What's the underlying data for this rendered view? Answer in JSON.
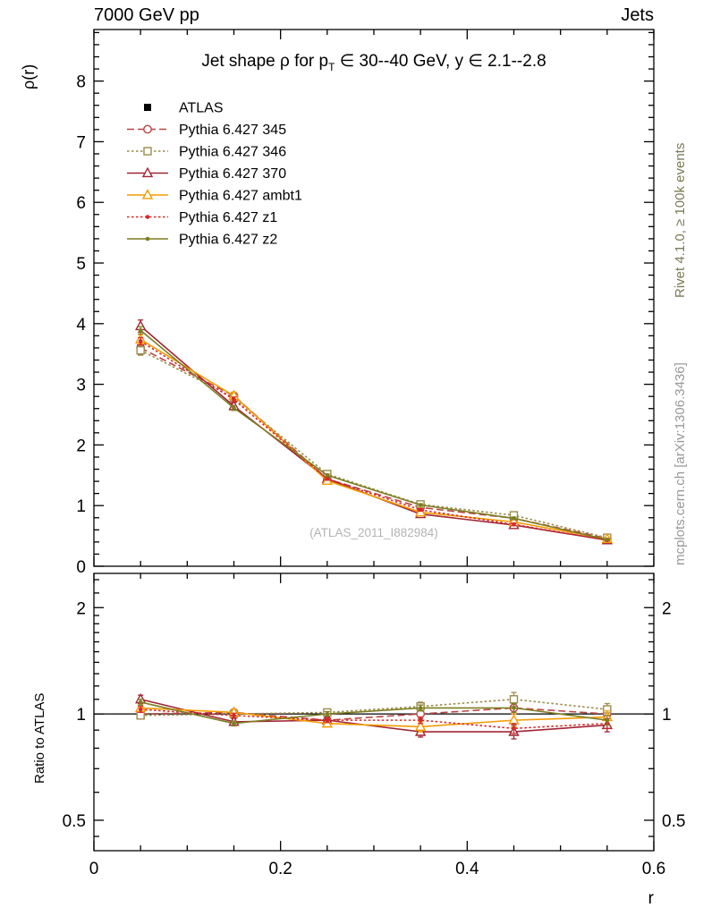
{
  "header": {
    "left": "7000 GeV pp",
    "right": "Jets"
  },
  "title": {
    "pre": "Jet shape ρ for p",
    "sub": "T",
    "post": " ∈ 30--40 GeV, y ∈ 2.1--2.8"
  },
  "side_notes": {
    "rivet": "Rivet 4.1.0, ≥ 100k events",
    "mcplots": "mcplots.cern.ch [arXiv:1306.3436]"
  },
  "watermark": "(ATLAS_2011_I882984)",
  "chart_data": {
    "type": "line",
    "x_label": "r",
    "x": [
      0.05,
      0.15,
      0.25,
      0.35,
      0.45,
      0.55
    ],
    "xlim": [
      0,
      0.6
    ],
    "x_major_ticks": [
      0,
      0.2,
      0.4,
      0.6
    ],
    "x_minor_step": 0.05,
    "main_panel": {
      "ylabel": "ρ(r)",
      "scale": "linear",
      "ylim": [
        0,
        8.85
      ],
      "major_ticks": [
        0,
        1,
        2,
        3,
        4,
        5,
        6,
        7,
        8
      ],
      "minor_step": 0.2
    },
    "ratio_panel": {
      "ylabel": "Ratio to ATLAS",
      "scale": "log",
      "ylim": [
        0.41,
        2.5
      ],
      "major_ticks": [
        0.5,
        1,
        2
      ],
      "minor_ticks": [
        0.45,
        0.6,
        0.7,
        0.8,
        0.9,
        1.1,
        1.2,
        1.3,
        1.4,
        1.5,
        1.6,
        1.7,
        1.8,
        1.9,
        2.2,
        2.4
      ]
    },
    "series": [
      {
        "name": "atlas",
        "label": "ATLAS",
        "color": "#000000",
        "line": "none",
        "marker": "square-filled",
        "values": [
          3.6,
          2.78,
          1.5,
          0.97,
          0.76,
          0.46
        ],
        "errs": [
          0.1,
          0.08,
          0.04,
          0.03,
          0.03,
          0.02
        ],
        "ratio": [
          1,
          1,
          1,
          1,
          1,
          1
        ],
        "ratio_errs": [
          0,
          0,
          0,
          0,
          0,
          0
        ]
      },
      {
        "name": "pythia-345",
        "label": "Pythia 6.427 345",
        "color": "#bb4444",
        "line": "dashed",
        "marker": "circle-open",
        "values": [
          3.6,
          2.81,
          1.44,
          0.97,
          0.79,
          0.46
        ],
        "errs": [
          0.08,
          0.06,
          0.03,
          0.03,
          0.03,
          0.02
        ],
        "ratio": [
          1.0,
          1.01,
          0.96,
          1.0,
          1.04,
          1.0
        ],
        "ratio_errs": [
          0.02,
          0.02,
          0.02,
          0.03,
          0.04,
          0.04
        ]
      },
      {
        "name": "pythia-346",
        "label": "Pythia 6.427 346",
        "color": "#9c8b4a",
        "line": "dotted",
        "marker": "square-open",
        "values": [
          3.56,
          2.78,
          1.52,
          1.02,
          0.84,
          0.47
        ],
        "errs": [
          0.08,
          0.06,
          0.03,
          0.03,
          0.04,
          0.02
        ],
        "ratio": [
          0.99,
          1.0,
          1.01,
          1.05,
          1.1,
          1.03
        ],
        "ratio_errs": [
          0.02,
          0.02,
          0.02,
          0.03,
          0.05,
          0.04
        ]
      },
      {
        "name": "pythia-370",
        "label": "Pythia 6.427 370",
        "color": "#a02535",
        "line": "solid",
        "marker": "triangle-open",
        "values": [
          3.96,
          2.64,
          1.44,
          0.86,
          0.68,
          0.43
        ],
        "errs": [
          0.1,
          0.06,
          0.03,
          0.03,
          0.03,
          0.02
        ],
        "ratio": [
          1.1,
          0.95,
          0.96,
          0.89,
          0.89,
          0.93
        ],
        "ratio_errs": [
          0.03,
          0.02,
          0.02,
          0.03,
          0.04,
          0.04
        ]
      },
      {
        "name": "pythia-ambt1",
        "label": "Pythia 6.427 ambt1",
        "color": "#f59b00",
        "line": "solid",
        "marker": "triangle-open",
        "values": [
          3.74,
          2.81,
          1.41,
          0.89,
          0.73,
          0.45
        ],
        "errs": [
          0.08,
          0.06,
          0.03,
          0.02,
          0.03,
          0.02
        ],
        "ratio": [
          1.04,
          1.01,
          0.94,
          0.92,
          0.96,
          0.98
        ],
        "ratio_errs": [
          0.02,
          0.02,
          0.02,
          0.03,
          0.04,
          0.04
        ]
      },
      {
        "name": "pythia-z1",
        "label": "Pythia 6.427 z1",
        "color": "#d62828",
        "line": "dotted",
        "marker": "dot",
        "values": [
          3.71,
          2.75,
          1.44,
          0.93,
          0.69,
          0.43
        ],
        "errs": [
          0.06,
          0.04,
          0.02,
          0.02,
          0.02,
          0.015
        ],
        "ratio": [
          1.03,
          0.99,
          0.96,
          0.96,
          0.91,
          0.94
        ],
        "ratio_errs": [
          0.02,
          0.015,
          0.015,
          0.02,
          0.03,
          0.03
        ]
      },
      {
        "name": "pythia-z2",
        "label": "Pythia 6.427 z2",
        "color": "#7d7d21",
        "line": "solid",
        "marker": "dot",
        "values": [
          3.89,
          2.61,
          1.5,
          1.01,
          0.79,
          0.44
        ],
        "errs": [
          0.06,
          0.04,
          0.02,
          0.02,
          0.02,
          0.015
        ],
        "ratio": [
          1.08,
          0.94,
          1.0,
          1.04,
          1.04,
          0.96
        ],
        "ratio_errs": [
          0.02,
          0.015,
          0.015,
          0.02,
          0.03,
          0.03
        ]
      }
    ]
  }
}
